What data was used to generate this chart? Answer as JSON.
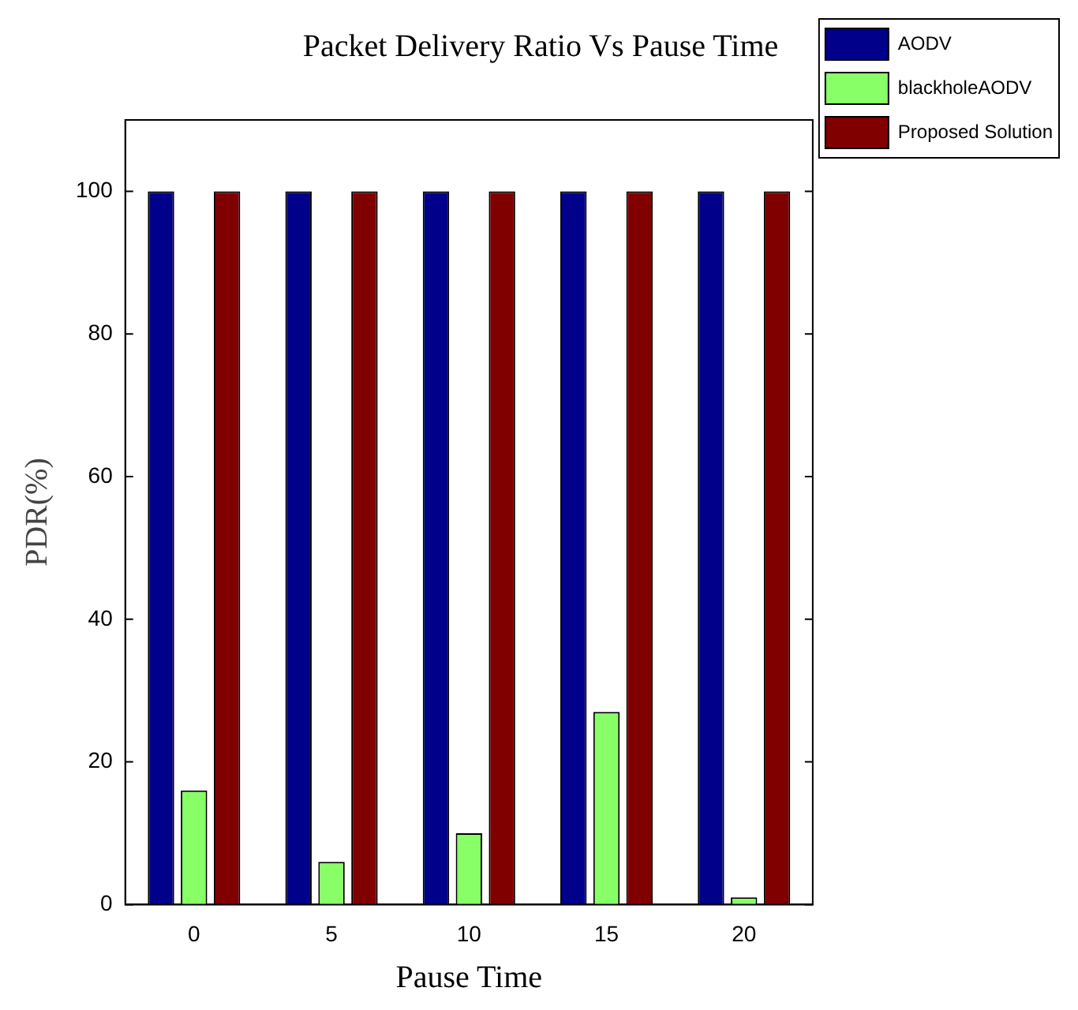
{
  "chart_data": {
    "type": "bar",
    "title": "Packet Delivery Ratio Vs Pause Time",
    "xlabel": "Pause Time",
    "ylabel": "PDR(%)",
    "categories": [
      "0",
      "5",
      "10",
      "15",
      "20"
    ],
    "series": [
      {
        "name": "AODV",
        "color": "#00008b",
        "values": [
          100,
          100,
          100,
          100,
          100
        ]
      },
      {
        "name": "blackholeAODV",
        "color": "#88ff66",
        "values": [
          16,
          6,
          10,
          27,
          1
        ]
      },
      {
        "name": "Proposed Solution",
        "color": "#800000",
        "values": [
          100,
          100,
          100,
          100,
          100
        ]
      }
    ],
    "ylim": [
      0,
      110
    ],
    "yticks": [
      0,
      20,
      40,
      60,
      80,
      100
    ],
    "grid": false,
    "legend": "right"
  }
}
